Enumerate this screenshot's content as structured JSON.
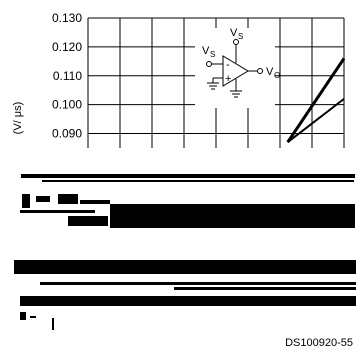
{
  "chart_data": {
    "type": "line",
    "ylabel": "(V/ μs)",
    "y_ticks": [
      "0.130",
      "0.120",
      "0.110",
      "0.100",
      "0.090"
    ],
    "ylim_visible": [
      0.085,
      0.13
    ],
    "grid": true,
    "series": [
      {
        "values": [
          [
            0.78,
            0.087
          ],
          [
            1.0,
            0.116
          ]
        ]
      },
      {
        "values": [
          [
            0.78,
            0.087
          ],
          [
            1.0,
            0.102
          ]
        ]
      }
    ],
    "inset_schematic": {
      "labels": {
        "vs_top": "V",
        "vs_top_sub": "S",
        "vs_left": "V",
        "vs_left_sub": "S",
        "vo": "V",
        "vo_sub": "O"
      },
      "signs": {
        "minus": "-",
        "plus": "+"
      }
    }
  },
  "footer": {
    "code": "DS100920-55"
  }
}
